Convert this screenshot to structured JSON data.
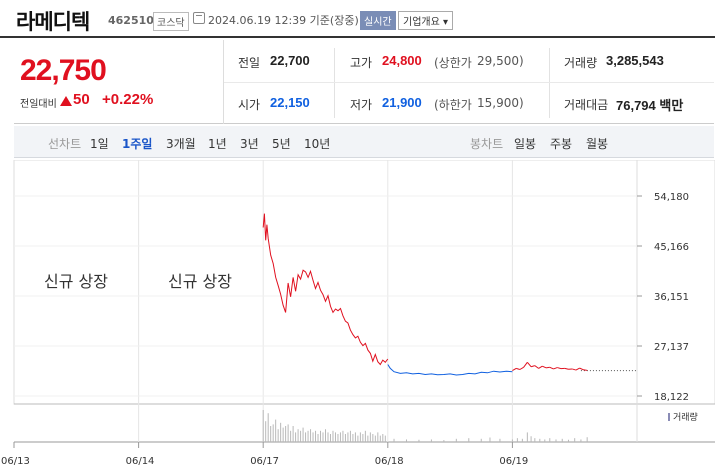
{
  "header": {
    "name": "라메디텍",
    "code": "462510",
    "market": "코스닥",
    "datetime": "2024.06.19 12:39 기준(장중)",
    "live_label": "실시간",
    "company_label": "기업개요 ▾"
  },
  "quote": {
    "price": "22,750",
    "change_label": "전일대비",
    "change": "50",
    "change_pct": "+0.22%",
    "prev_close": {
      "label": "전일",
      "value": "22,700"
    },
    "open": {
      "label": "시가",
      "value": "22,150"
    },
    "high": {
      "label": "고가",
      "value": "24,800",
      "limit_label": "(상한가",
      "limit_value": "29,500)"
    },
    "low": {
      "label": "저가",
      "value": "21,900",
      "limit_label": "(하한가",
      "limit_value": "15,900)"
    },
    "volume": {
      "label": "거래량",
      "value": "3,285,543"
    },
    "amount": {
      "label": "거래대금",
      "value": "76,794 백만"
    }
  },
  "tabs": {
    "line_caption": "선차트",
    "line_items": [
      "1일",
      "1주일",
      "3개월",
      "1년",
      "3년",
      "5년",
      "10년"
    ],
    "active": "1주일",
    "candle_caption": "봉차트",
    "candle_items": [
      "일봉",
      "주봉",
      "월봉"
    ]
  },
  "chart_data": {
    "type": "line",
    "x_ticks": [
      "06/13",
      "06/14",
      "06/17",
      "06/18",
      "06/19"
    ],
    "y_ticks": [
      54180,
      45166,
      36151,
      27137,
      18122
    ],
    "ylim": [
      18122,
      54180
    ],
    "reference_price": 22700,
    "up_color": "#e0101f",
    "down_color": "#1060e0",
    "annotations": [
      "신규 상장",
      "신규 상장"
    ],
    "volume_legend": "거래량",
    "series": [
      {
        "color": "up",
        "day_start": 2,
        "points": [
          [
            2.0,
            48500
          ],
          [
            2.01,
            51000
          ],
          [
            2.02,
            46200
          ],
          [
            2.03,
            49000
          ],
          [
            2.04,
            46500
          ],
          [
            2.06,
            43500
          ],
          [
            2.08,
            42000
          ],
          [
            2.1,
            39500
          ],
          [
            2.12,
            38000
          ],
          [
            2.14,
            36500
          ],
          [
            2.16,
            34500
          ],
          [
            2.18,
            33200
          ],
          [
            2.2,
            38500
          ],
          [
            2.22,
            36000
          ],
          [
            2.24,
            39500
          ],
          [
            2.26,
            37000
          ],
          [
            2.28,
            40000
          ],
          [
            2.3,
            39200
          ],
          [
            2.32,
            40800
          ],
          [
            2.34,
            40500
          ],
          [
            2.36,
            39500
          ],
          [
            2.38,
            40600
          ],
          [
            2.4,
            39000
          ],
          [
            2.42,
            37500
          ],
          [
            2.44,
            38600
          ],
          [
            2.46,
            37200
          ],
          [
            2.48,
            36400
          ],
          [
            2.5,
            35200
          ],
          [
            2.52,
            36200
          ],
          [
            2.54,
            34300
          ],
          [
            2.56,
            33200
          ],
          [
            2.58,
            33800
          ],
          [
            2.6,
            33500
          ],
          [
            2.62,
            33900
          ],
          [
            2.64,
            32600
          ],
          [
            2.66,
            31600
          ],
          [
            2.68,
            31300
          ],
          [
            2.7,
            30000
          ],
          [
            2.72,
            29200
          ],
          [
            2.74,
            28600
          ],
          [
            2.76,
            28900
          ],
          [
            2.78,
            27800
          ],
          [
            2.8,
            27200
          ],
          [
            2.82,
            27600
          ],
          [
            2.84,
            26400
          ],
          [
            2.86,
            25800
          ],
          [
            2.88,
            24400
          ],
          [
            2.9,
            25600
          ],
          [
            2.92,
            24300
          ],
          [
            2.94,
            23800
          ],
          [
            2.96,
            24600
          ],
          [
            2.98,
            24200
          ],
          [
            3.0,
            24800
          ]
        ]
      },
      {
        "color": "down",
        "points": [
          [
            3.0,
            23800
          ],
          [
            3.02,
            23100
          ],
          [
            3.05,
            22500
          ],
          [
            3.1,
            22200
          ],
          [
            3.15,
            22300
          ],
          [
            3.2,
            22100
          ],
          [
            3.25,
            22200
          ],
          [
            3.3,
            22000
          ],
          [
            3.35,
            22100
          ],
          [
            3.4,
            21950
          ],
          [
            3.45,
            22000
          ],
          [
            3.5,
            22100
          ],
          [
            3.55,
            21900
          ],
          [
            3.6,
            22000
          ],
          [
            3.65,
            22200
          ],
          [
            3.7,
            22100
          ],
          [
            3.75,
            22400
          ],
          [
            3.8,
            22300
          ],
          [
            3.85,
            22600
          ],
          [
            3.9,
            22450
          ],
          [
            3.95,
            22600
          ],
          [
            4.0,
            22500
          ]
        ]
      },
      {
        "color": "mixed",
        "points": [
          [
            4.0,
            22700
          ],
          [
            4.03,
            23100
          ],
          [
            4.06,
            22900
          ],
          [
            4.09,
            23300
          ],
          [
            4.12,
            24200
          ],
          [
            4.15,
            23400
          ],
          [
            4.18,
            23600
          ],
          [
            4.21,
            23100
          ],
          [
            4.24,
            23500
          ],
          [
            4.27,
            23200
          ],
          [
            4.3,
            23300
          ],
          [
            4.33,
            23000
          ],
          [
            4.36,
            23250
          ],
          [
            4.39,
            23050
          ],
          [
            4.42,
            23100
          ],
          [
            4.45,
            22950
          ],
          [
            4.48,
            23000
          ],
          [
            4.51,
            22800
          ],
          [
            4.54,
            23150
          ],
          [
            4.57,
            22850
          ],
          [
            4.6,
            22750
          ]
        ]
      }
    ],
    "volume": [
      [
        2.0,
        1.0
      ],
      [
        2.02,
        0.65
      ],
      [
        2.04,
        0.9
      ],
      [
        2.06,
        0.5
      ],
      [
        2.08,
        0.55
      ],
      [
        2.1,
        0.7
      ],
      [
        2.12,
        0.4
      ],
      [
        2.14,
        0.6
      ],
      [
        2.16,
        0.45
      ],
      [
        2.18,
        0.5
      ],
      [
        2.2,
        0.55
      ],
      [
        2.22,
        0.35
      ],
      [
        2.24,
        0.5
      ],
      [
        2.26,
        0.3
      ],
      [
        2.28,
        0.4
      ],
      [
        2.3,
        0.35
      ],
      [
        2.32,
        0.45
      ],
      [
        2.34,
        0.3
      ],
      [
        2.36,
        0.35
      ],
      [
        2.38,
        0.4
      ],
      [
        2.4,
        0.3
      ],
      [
        2.42,
        0.35
      ],
      [
        2.44,
        0.25
      ],
      [
        2.46,
        0.35
      ],
      [
        2.48,
        0.3
      ],
      [
        2.5,
        0.4
      ],
      [
        2.52,
        0.3
      ],
      [
        2.54,
        0.25
      ],
      [
        2.56,
        0.35
      ],
      [
        2.58,
        0.3
      ],
      [
        2.6,
        0.25
      ],
      [
        2.62,
        0.3
      ],
      [
        2.64,
        0.35
      ],
      [
        2.66,
        0.25
      ],
      [
        2.68,
        0.3
      ],
      [
        2.7,
        0.35
      ],
      [
        2.72,
        0.25
      ],
      [
        2.74,
        0.3
      ],
      [
        2.76,
        0.2
      ],
      [
        2.78,
        0.3
      ],
      [
        2.8,
        0.25
      ],
      [
        2.82,
        0.35
      ],
      [
        2.84,
        0.2
      ],
      [
        2.86,
        0.3
      ],
      [
        2.88,
        0.25
      ],
      [
        2.9,
        0.2
      ],
      [
        2.92,
        0.3
      ],
      [
        2.94,
        0.2
      ],
      [
        2.96,
        0.25
      ],
      [
        2.98,
        0.2
      ],
      [
        3.05,
        0.1
      ],
      [
        3.15,
        0.08
      ],
      [
        3.25,
        0.07
      ],
      [
        3.35,
        0.08
      ],
      [
        3.45,
        0.06
      ],
      [
        3.55,
        0.1
      ],
      [
        3.65,
        0.12
      ],
      [
        3.75,
        0.1
      ],
      [
        3.82,
        0.14
      ],
      [
        3.9,
        0.1
      ],
      [
        4.0,
        0.08
      ],
      [
        4.04,
        0.12
      ],
      [
        4.08,
        0.1
      ],
      [
        4.12,
        0.3
      ],
      [
        4.15,
        0.18
      ],
      [
        4.18,
        0.12
      ],
      [
        4.22,
        0.1
      ],
      [
        4.26,
        0.08
      ],
      [
        4.3,
        0.12
      ],
      [
        4.35,
        0.08
      ],
      [
        4.4,
        0.1
      ],
      [
        4.45,
        0.07
      ],
      [
        4.5,
        0.12
      ],
      [
        4.55,
        0.08
      ],
      [
        4.6,
        0.15
      ]
    ]
  }
}
